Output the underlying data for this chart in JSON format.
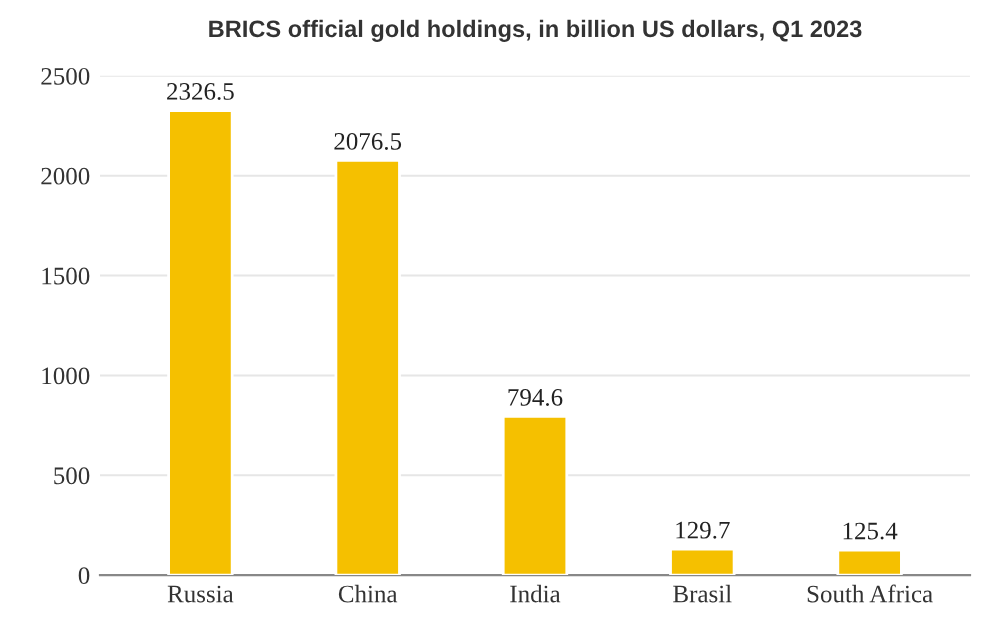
{
  "chart_data": {
    "type": "bar",
    "title": "BRICS official gold holdings, in billion US dollars, Q1 2023",
    "categories": [
      "Russia",
      "China",
      "India",
      "Brasil",
      "South Africa"
    ],
    "values": [
      2326.5,
      2076.5,
      794.6,
      129.7,
      125.4
    ],
    "color": "#f5c000",
    "ylim": [
      0,
      2500
    ],
    "yticks": [
      0,
      500,
      1000,
      1500,
      2000,
      2500
    ],
    "grid": "y",
    "data_labels": true
  }
}
